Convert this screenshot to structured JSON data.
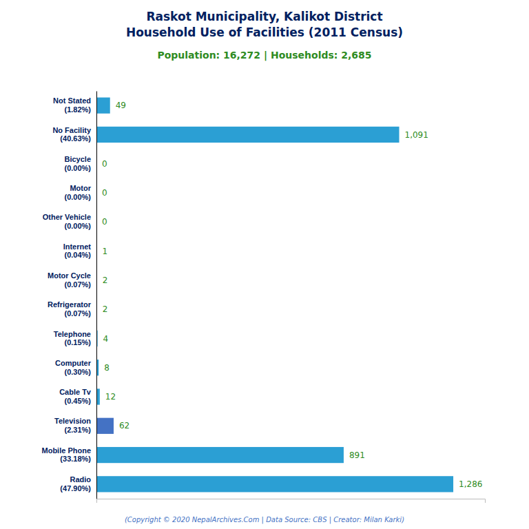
{
  "chart_data": {
    "type": "bar",
    "orientation": "horizontal",
    "title": "Raskot Municipality, Kalikot District\nHousehold Use of Facilities (2011 Census)",
    "subtitle": "Population: 16,272 | Households: 2,685",
    "annotations": [
      "(Copyright © 2020 NepalArchives.Com | Data Source: CBS | Creator: Milan Karki)"
    ],
    "categories": [
      "Not Stated\n(1.82%)",
      "No Facility\n(40.63%)",
      "Bicycle\n(0.00%)",
      "Motor\n(0.00%)",
      "Other Vehicle\n(0.00%)",
      "Internet\n(0.04%)",
      "Motor Cycle\n(0.07%)",
      "Refrigerator\n(0.07%)",
      "Telephone\n(0.15%)",
      "Computer\n(0.30%)",
      "Cable Tv\n(0.45%)",
      "Television\n(2.31%)",
      "Mobile Phone\n(33.18%)",
      "Radio\n(47.90%)"
    ],
    "values": [
      49,
      1091,
      0,
      0,
      0,
      1,
      2,
      2,
      4,
      8,
      12,
      62,
      891,
      1286
    ],
    "value_labels": [
      "49",
      "1,091",
      "0",
      "0",
      "0",
      "1",
      "2",
      "2",
      "4",
      "8",
      "12",
      "62",
      "891",
      "1,286"
    ],
    "data_labels": true,
    "colors": [
      "#2b9fd4",
      "#2b9fd4",
      "#2b9fd4",
      "#2b9fd4",
      "#2b9fd4",
      "#2b9fd4",
      "#2b9fd4",
      "#2b9fd4",
      "#2b9fd4",
      "#2b9fd4",
      "#2b9fd4",
      "#4472c4",
      "#2b9fd4",
      "#2b9fd4"
    ],
    "xlim": [
      0,
      1400
    ],
    "tick_labels": "y",
    "grid": false
  }
}
